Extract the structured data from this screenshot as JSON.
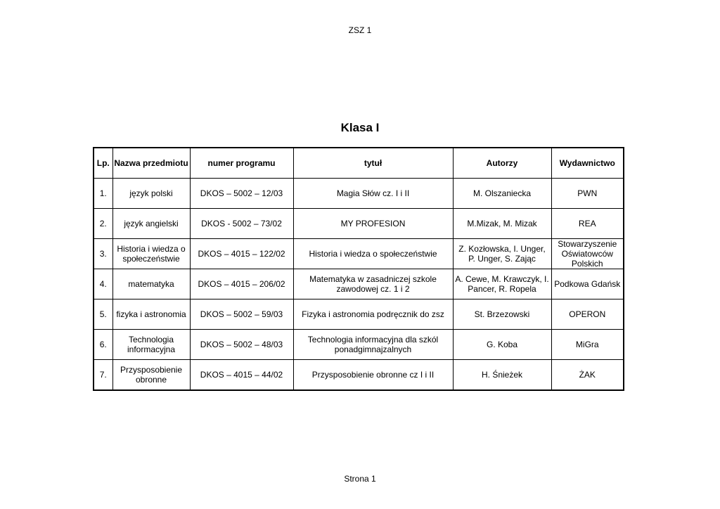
{
  "page_header": "ZSZ 1",
  "title": "Klasa I",
  "footer": "Strona 1",
  "table": {
    "headers": [
      "Lp.",
      "Nazwa przedmiotu",
      "numer programu",
      "tytuł",
      "Autorzy",
      "Wydawnictwo"
    ],
    "rows": [
      [
        "1.",
        "język polski",
        "DKOS – 5002 – 12/03",
        "Magia Słów cz. I i II",
        "M. Olszaniecka",
        "PWN"
      ],
      [
        "2.",
        "język angielski",
        "DKOS - 5002 – 73/02",
        "MY PROFESION",
        "M.Mizak, M. Mizak",
        "REA"
      ],
      [
        "3.",
        "Historia i wiedza o\nspołeczeństwie",
        "DKOS – 4015 – 122/02",
        "Historia i wiedza o społeczeństwie",
        "Z. Kozłowska, I. Unger,\nP. Unger, S. Zając",
        "Stowarzyszenie\nOświatowców\nPolskich"
      ],
      [
        "4.",
        "matematyka",
        "DKOS – 4015 – 206/02",
        "Matematyka w zasadniczej szkole\nzawodowej cz. 1 i 2",
        "A. Cewe, M. Krawczyk, I.\nPancer, R. Ropela",
        "Podkowa Gdańsk"
      ],
      [
        "5.",
        "fizyka i astronomia",
        "DKOS – 5002 – 59/03",
        "Fizyka i astronomia podręcznik do zsz",
        "St. Brzezowski",
        "OPERON"
      ],
      [
        "6.",
        "Technologia\ninformacyjna",
        "DKOS – 5002 – 48/03",
        "Technologia informacyjna dla szkól\nponadgimnajzalnych",
        "G. Koba",
        "MiGra"
      ],
      [
        "7.",
        "Przysposobienie\nobronne",
        "DKOS – 4015 – 44/02",
        "Przysposobienie obronne cz I i II",
        "H. Śnieżek",
        "ŻAK"
      ]
    ]
  }
}
